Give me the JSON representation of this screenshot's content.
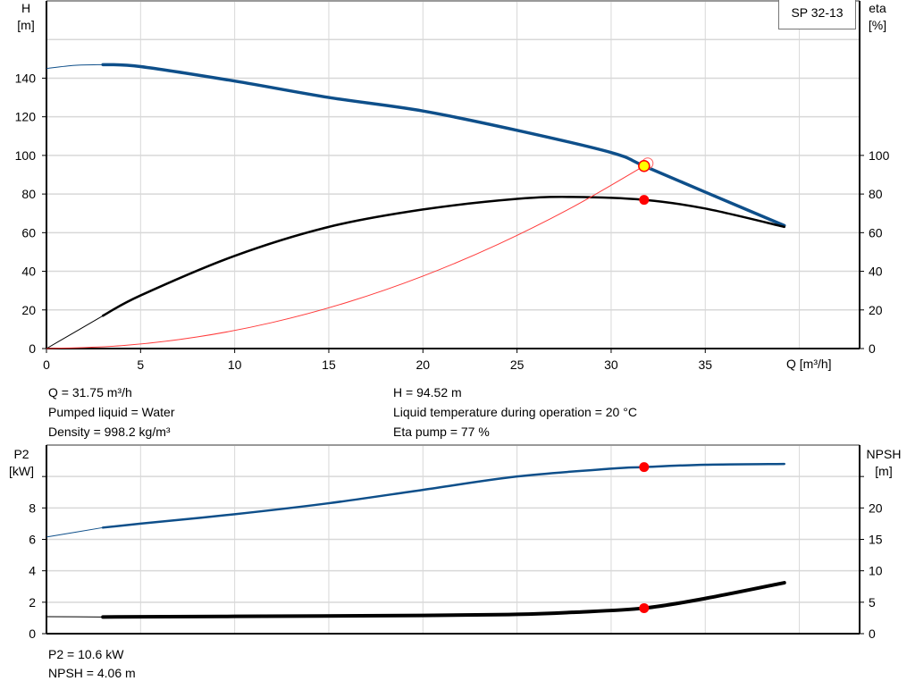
{
  "chart_data": [
    {
      "type": "line",
      "title": "SP 32-13",
      "xlabel": "Q [m³/h]",
      "ylabel": [
        "H",
        "[m]"
      ],
      "y2label": [
        "eta",
        "[%]"
      ],
      "xlim": [
        0,
        43.2
      ],
      "ylim": [
        0,
        180
      ],
      "y2lim": [
        0,
        180
      ],
      "xticks": [
        0,
        5,
        10,
        15,
        20,
        25,
        30,
        35
      ],
      "yticks": [
        0,
        20,
        40,
        60,
        80,
        100,
        120,
        140
      ],
      "y2ticks": [
        0,
        20,
        40,
        60,
        80,
        100
      ],
      "grid": true,
      "series": [
        {
          "name": "H",
          "axis": "left",
          "color": "#0e4f8a",
          "x": [
            0,
            1.5,
            3,
            5,
            10,
            15,
            20,
            25,
            30,
            31.75,
            35,
            39.2
          ],
          "y": [
            145,
            146.6,
            147,
            146,
            138.5,
            130,
            123,
            113,
            101.5,
            94.52,
            81,
            63.7
          ]
        },
        {
          "name": "eta",
          "axis": "right",
          "color": "#000000",
          "x": [
            0,
            3,
            5,
            10,
            15,
            20,
            25,
            28,
            31.75,
            35,
            39.2
          ],
          "y": [
            0,
            17,
            27.5,
            48,
            63,
            72,
            77.5,
            78.5,
            77,
            72.5,
            63
          ]
        },
        {
          "name": "system",
          "axis": "left",
          "color": "#ff3b3b",
          "x": [
            0,
            4,
            8,
            12,
            16,
            20,
            24,
            28,
            32
          ],
          "y": [
            0,
            1.5,
            6,
            13.5,
            24,
            37.5,
            54,
            73.5,
            96
          ]
        }
      ],
      "operating_points": [
        {
          "series": "H",
          "x": 31.75,
          "y": 94.52,
          "color": "#ffff00"
        },
        {
          "series": "eta",
          "x": 31.75,
          "y": 77,
          "color": "#ff0000"
        }
      ]
    },
    {
      "type": "line",
      "ylabel": [
        "P2",
        "[kW]"
      ],
      "y2label": [
        "NPSH",
        "[m]"
      ],
      "xlim": [
        0,
        43.2
      ],
      "ylim": [
        0,
        12
      ],
      "y2lim": [
        0,
        30
      ],
      "yticks": [
        0,
        2,
        4,
        6,
        8,
        10
      ],
      "yticklabels": [
        "0",
        "2",
        "4",
        "6",
        "8",
        ""
      ],
      "y2ticks": [
        0,
        5,
        10,
        15,
        20,
        25
      ],
      "y2ticklabels": [
        "0",
        "5",
        "10",
        "15",
        "20",
        ""
      ],
      "grid": true,
      "series": [
        {
          "name": "P2",
          "axis": "left",
          "color": "#0e4f8a",
          "x": [
            0,
            3,
            5,
            10,
            15,
            20,
            25,
            30,
            31.75,
            35,
            39.2
          ],
          "y": [
            6.15,
            6.75,
            7.0,
            7.6,
            8.3,
            9.15,
            10.0,
            10.5,
            10.6,
            10.75,
            10.8
          ]
        },
        {
          "name": "NPSH",
          "axis": "right",
          "color": "#000000",
          "x": [
            0,
            3,
            10,
            20,
            25,
            28,
            31.75,
            35,
            39.2
          ],
          "y": [
            2.7,
            2.65,
            2.75,
            2.9,
            3.07,
            3.4,
            4.06,
            5.6,
            8.1
          ]
        }
      ],
      "operating_points": [
        {
          "series": "P2",
          "x": 31.75,
          "y": 10.6,
          "color": "#ff0000"
        },
        {
          "series": "NPSH",
          "x": 31.75,
          "y": 4.06,
          "color": "#ff0000"
        }
      ]
    }
  ],
  "info_top": {
    "q": "Q = 31.75 m³/h",
    "liquid": "Pumped liquid = Water",
    "density": "Density = 998.2 kg/m³",
    "h": "H = 94.52 m",
    "temp": "Liquid temperature during operation = 20 °C",
    "eta": "Eta pump = 77 %"
  },
  "info_bottom": {
    "p2": "P2 = 10.6 kW",
    "npsh": "NPSH = 4.06 m"
  }
}
